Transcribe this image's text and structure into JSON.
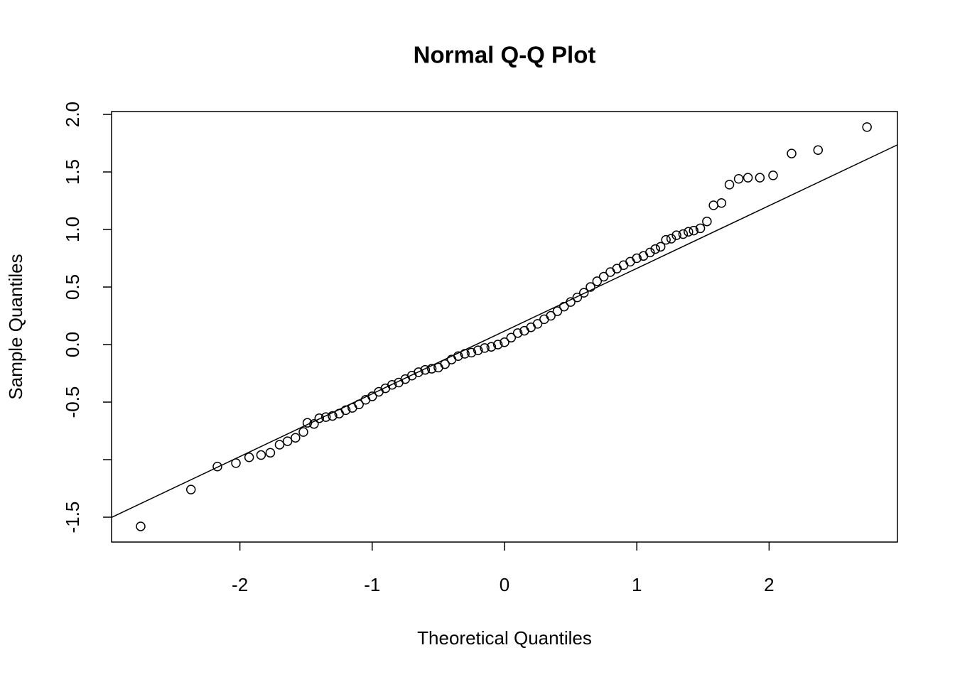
{
  "chart_data": {
    "type": "scatter",
    "title": "Normal Q-Q Plot",
    "x_label": "Theoretical Quantiles",
    "y_label": "Sample Quantiles",
    "xlim": [
      -2.97,
      2.97
    ],
    "ylim": [
      -1.716,
      2.025
    ],
    "xticks": [
      -2,
      -1,
      0,
      1,
      2
    ],
    "yticks": [
      {
        "value": -1.5,
        "label": "-1.5"
      },
      {
        "value": -1,
        "label": null
      },
      {
        "value": -0.5,
        "label": "-0.5"
      },
      {
        "value": 0,
        "label": "0.0"
      },
      {
        "value": 0.5,
        "label": "0.5"
      },
      {
        "value": 1,
        "label": "1.0"
      },
      {
        "value": 1.5,
        "label": "1.5"
      },
      {
        "value": 2,
        "label": "2.0"
      }
    ],
    "reference_line": {
      "intercept": 0.117,
      "slope": 0.545
    },
    "color": "#000000",
    "x": [
      -2.75,
      -2.37,
      -2.17,
      -2.03,
      -1.93,
      -1.84,
      -1.77,
      -1.7,
      -1.64,
      -1.58,
      -1.52,
      -1.49,
      -1.44,
      -1.4,
      -1.35,
      -1.3,
      -1.25,
      -1.2,
      -1.15,
      -1.1,
      -1.05,
      -1.0,
      -0.95,
      -0.9,
      -0.85,
      -0.8,
      -0.75,
      -0.7,
      -0.65,
      -0.6,
      -0.55,
      -0.5,
      -0.45,
      -0.4,
      -0.35,
      -0.3,
      -0.25,
      -0.2,
      -0.15,
      -0.1,
      -0.05,
      0.0,
      0.05,
      0.1,
      0.15,
      0.2,
      0.25,
      0.3,
      0.35,
      0.4,
      0.45,
      0.5,
      0.55,
      0.6,
      0.65,
      0.7,
      0.75,
      0.8,
      0.85,
      0.9,
      0.95,
      1.0,
      1.05,
      1.1,
      1.14,
      1.18,
      1.22,
      1.26,
      1.3,
      1.35,
      1.39,
      1.43,
      1.48,
      1.53,
      1.58,
      1.64,
      1.7,
      1.77,
      1.84,
      1.93,
      2.03,
      2.17,
      2.37,
      2.74
    ],
    "values": [
      -1.58,
      -1.26,
      -1.06,
      -1.03,
      -0.98,
      -0.96,
      -0.94,
      -0.87,
      -0.84,
      -0.81,
      -0.76,
      -0.68,
      -0.69,
      -0.64,
      -0.63,
      -0.62,
      -0.6,
      -0.57,
      -0.55,
      -0.52,
      -0.48,
      -0.45,
      -0.41,
      -0.38,
      -0.35,
      -0.33,
      -0.3,
      -0.27,
      -0.24,
      -0.22,
      -0.21,
      -0.2,
      -0.17,
      -0.13,
      -0.1,
      -0.08,
      -0.07,
      -0.05,
      -0.03,
      -0.02,
      0.0,
      0.02,
      0.06,
      0.1,
      0.12,
      0.15,
      0.18,
      0.22,
      0.25,
      0.29,
      0.33,
      0.37,
      0.41,
      0.45,
      0.5,
      0.55,
      0.59,
      0.63,
      0.66,
      0.69,
      0.72,
      0.75,
      0.77,
      0.8,
      0.83,
      0.85,
      0.91,
      0.92,
      0.95,
      0.96,
      0.98,
      0.99,
      1.01,
      1.07,
      1.21,
      1.23,
      1.39,
      1.44,
      1.45,
      1.45,
      1.47,
      1.66,
      1.69,
      1.89
    ]
  }
}
